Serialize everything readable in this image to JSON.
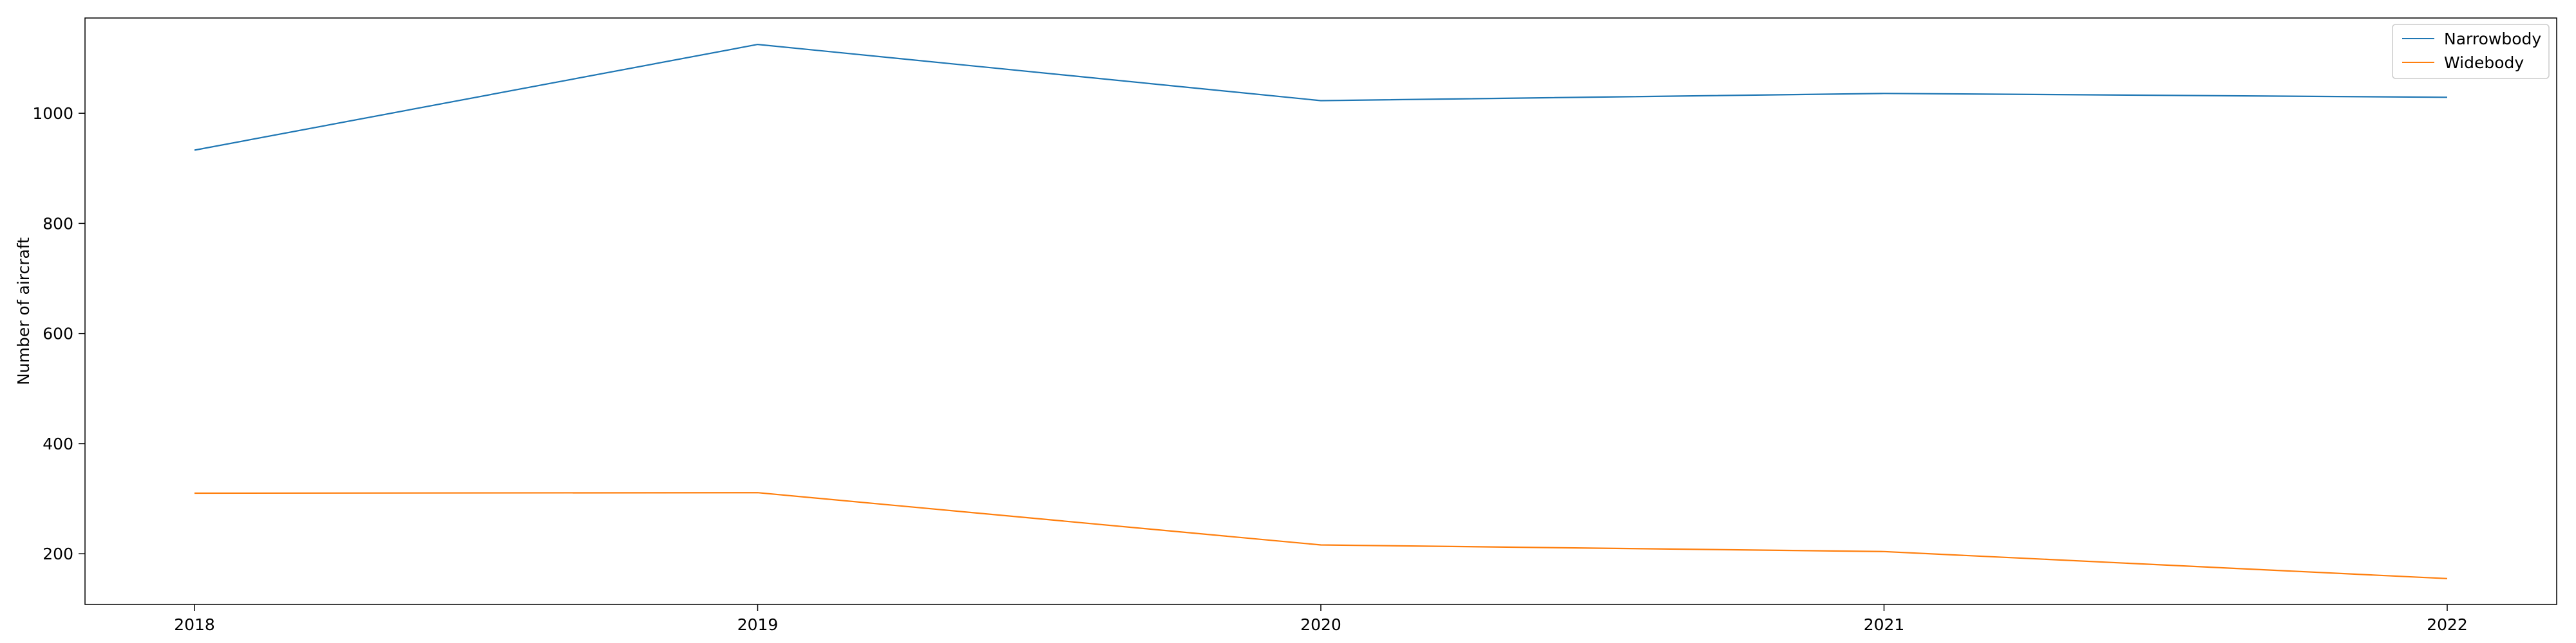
{
  "chart_data": {
    "type": "line",
    "title": "",
    "xlabel": "",
    "ylabel": "Number of aircraft",
    "x": [
      "2018",
      "2019",
      "2020",
      "2021",
      "2022"
    ],
    "series": [
      {
        "name": "Narrowbody",
        "values": [
          933,
          1125,
          1023,
          1036,
          1029
        ],
        "color": "#1f77b4"
      },
      {
        "name": "Widebody",
        "values": [
          310,
          311,
          216,
          204,
          155
        ],
        "color": "#ff7f0e"
      }
    ],
    "yticks": [
      200,
      400,
      600,
      800,
      1000
    ],
    "ylim": [
      108,
      1173
    ],
    "grid": false,
    "legend": {
      "position": "top-right"
    }
  }
}
